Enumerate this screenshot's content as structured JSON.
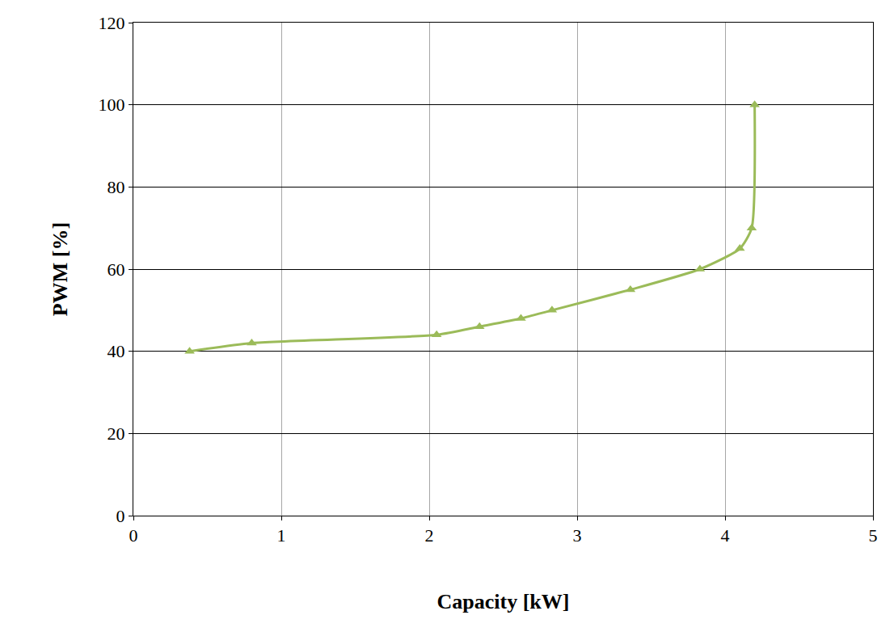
{
  "chart_data": {
    "type": "line",
    "x_label": "Capacity [kW]",
    "y_label": "PWM [%]",
    "x": [
      0.38,
      0.8,
      2.05,
      2.34,
      2.62,
      2.83,
      3.36,
      3.83,
      4.1,
      4.18,
      4.2
    ],
    "values": [
      40,
      42,
      44,
      46,
      48,
      50,
      55,
      60,
      65,
      70,
      100
    ],
    "color": "#9bbb59",
    "marker": "triangle-up",
    "line_style": "solid",
    "xlim": [
      0,
      5
    ],
    "xticks": [
      0,
      1,
      2,
      3,
      4,
      5
    ],
    "ylim": [
      0,
      120
    ],
    "yticks": [
      0,
      20,
      40,
      60,
      80,
      100,
      120
    ],
    "grid": true
  }
}
